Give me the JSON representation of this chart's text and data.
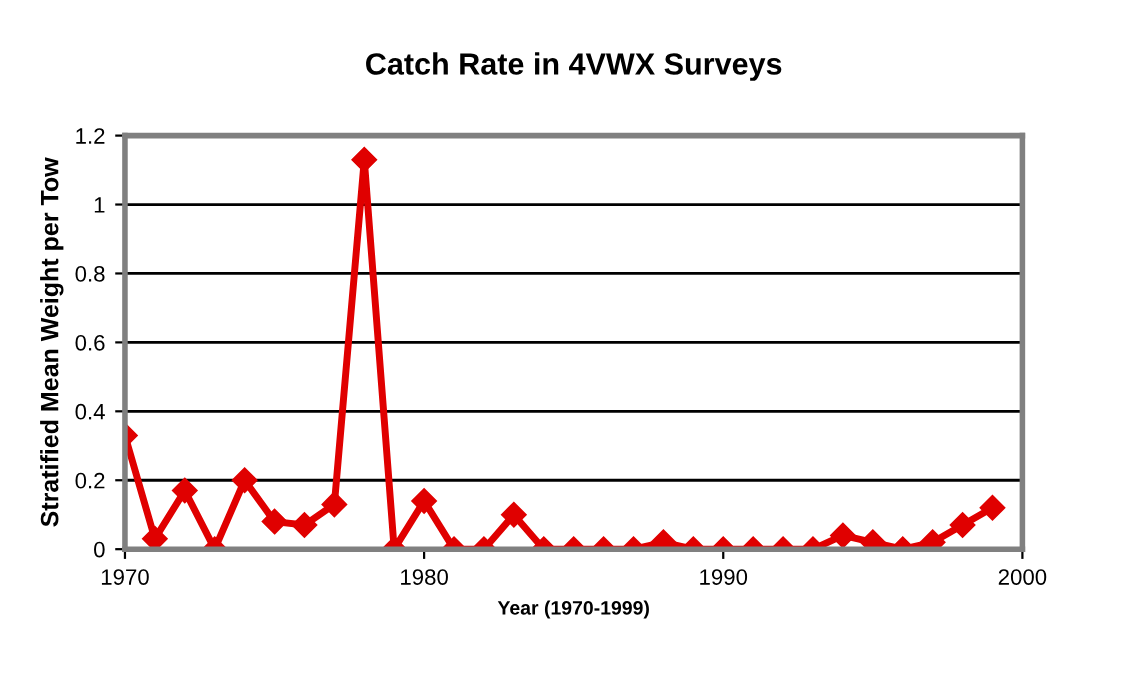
{
  "chart_data": {
    "type": "line",
    "title": "Catch Rate in 4VWX Surveys",
    "xlabel": "Year (1970-1999)",
    "ylabel": "Stratified Mean Weight per Tow",
    "x": [
      1970,
      1971,
      1972,
      1973,
      1974,
      1975,
      1976,
      1977,
      1978,
      1979,
      1980,
      1981,
      1982,
      1983,
      1984,
      1985,
      1986,
      1987,
      1988,
      1989,
      1990,
      1991,
      1992,
      1993,
      1994,
      1995,
      1996,
      1997,
      1998,
      1999
    ],
    "series": [
      {
        "color": "#e00000",
        "values": [
          0.33,
          0.03,
          0.17,
          0,
          0.2,
          0.08,
          0.07,
          0.13,
          1.13,
          0,
          0.14,
          0,
          0,
          0.1,
          0,
          0,
          0,
          0,
          0.02,
          0,
          0,
          0,
          0,
          0,
          0.04,
          0.02,
          0,
          0.02,
          0.07,
          0.12
        ]
      }
    ],
    "xlim": [
      1970,
      2000
    ],
    "xticks": [
      1970,
      1980,
      1990,
      2000
    ],
    "ylim": [
      0,
      1.2
    ],
    "yticks": [
      0,
      0.2,
      0.4,
      0.6,
      0.8,
      1,
      1.2
    ],
    "grid": "y",
    "marker": "diamond",
    "line_style": "solid"
  }
}
